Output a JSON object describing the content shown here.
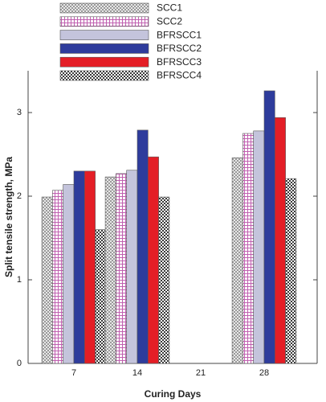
{
  "chart_data": {
    "type": "bar",
    "x_label": "Curing Days",
    "y_label": "Split tensile strength, MPa",
    "categories": [
      "7",
      "14",
      "21",
      "28"
    ],
    "series": [
      {
        "name": "SCC1",
        "color": "#8a8a8a",
        "pattern": "crosshatch",
        "values": [
          1.99,
          2.23,
          null,
          2.46
        ]
      },
      {
        "name": "SCC2",
        "color": "#c060b0",
        "pattern": "grid",
        "values": [
          2.07,
          2.27,
          null,
          2.75
        ]
      },
      {
        "name": "BFRSCC1",
        "color": "#c4c4dc",
        "pattern": "solid",
        "values": [
          2.14,
          2.31,
          null,
          2.78
        ]
      },
      {
        "name": "BFRSCC2",
        "color": "#2e3c9c",
        "pattern": "solid",
        "values": [
          2.3,
          2.79,
          null,
          3.26
        ]
      },
      {
        "name": "BFRSCC3",
        "color": "#e41e26",
        "pattern": "solid",
        "values": [
          2.3,
          2.47,
          null,
          2.94
        ]
      },
      {
        "name": "BFRSCC4",
        "color": "#3a3a3a",
        "pattern": "checker",
        "values": [
          1.6,
          1.99,
          null,
          2.21
        ]
      }
    ],
    "ylim": [
      0,
      3.5
    ],
    "yticks": [
      0,
      1,
      2,
      3
    ],
    "grid": false,
    "legend": "top"
  }
}
